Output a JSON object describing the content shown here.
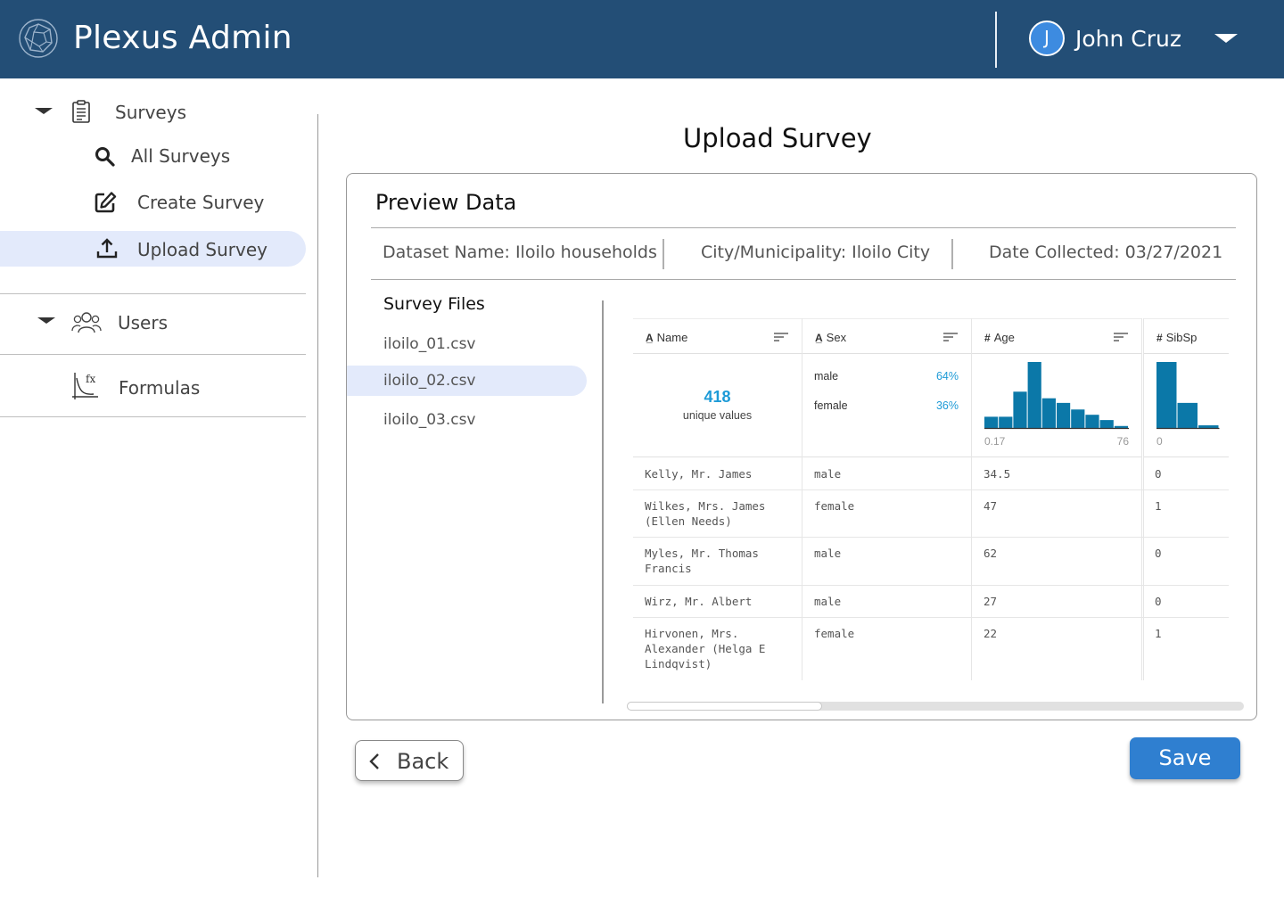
{
  "header": {
    "app_title": "Plexus Admin",
    "user": {
      "initial": "J",
      "name": "John Cruz"
    },
    "colors": {
      "bar": "#234e76",
      "avatar": "#3d8be0"
    }
  },
  "sidebar": {
    "surveys": {
      "label": "Surveys",
      "items": [
        {
          "label": "All Surveys",
          "icon": "search-icon"
        },
        {
          "label": "Create Survey",
          "icon": "edit-icon"
        },
        {
          "label": "Upload Survey",
          "icon": "upload-icon",
          "active": true
        }
      ]
    },
    "users": {
      "label": "Users",
      "icon": "users-icon"
    },
    "formulas": {
      "label": "Formulas",
      "icon": "formula-icon"
    }
  },
  "main": {
    "page_title": "Upload Survey",
    "card_title": "Preview Data",
    "meta": {
      "dataset": "Dataset Name: Iloilo households",
      "city": "City/Municipality: Iloilo City",
      "date": "Date Collected: 03/27/2021"
    },
    "files": {
      "title": "Survey Files",
      "items": [
        "iloilo_01.csv",
        "iloilo_02.csv",
        "iloilo_03.csv"
      ],
      "selected": "iloilo_02.csv"
    },
    "table": {
      "columns": [
        {
          "type_icon": "A̲",
          "label": "Name"
        },
        {
          "type_icon": "A̲",
          "label": "Sex"
        },
        {
          "type_icon": "#",
          "label": "Age"
        },
        {
          "type_icon": "#",
          "label": "SibSp"
        }
      ],
      "name_summary": {
        "count": "418",
        "label": "unique values"
      },
      "sex_summary": [
        {
          "label": "male",
          "pct": "64%"
        },
        {
          "label": "female",
          "pct": "36%"
        }
      ],
      "age_summary": {
        "min": "0.17",
        "max": "76",
        "hist": [
          0.17,
          0.17,
          0.55,
          1.0,
          0.45,
          0.38,
          0.28,
          0.2,
          0.12,
          0.03
        ]
      },
      "sibsp_summary": {
        "min": "0",
        "hist": [
          1.0,
          0.38,
          0.04
        ]
      },
      "rows": [
        {
          "name": "Kelly, Mr. James",
          "sex": "male",
          "age": "34.5",
          "sibsp": "0"
        },
        {
          "name": "Wilkes, Mrs. James\n(Ellen Needs)",
          "sex": "female",
          "age": "47",
          "sibsp": "1"
        },
        {
          "name": "Myles, Mr. Thomas\nFrancis",
          "sex": "male",
          "age": "62",
          "sibsp": "0"
        },
        {
          "name": "Wirz, Mr. Albert",
          "sex": "male",
          "age": "27",
          "sibsp": "0"
        },
        {
          "name": "Hirvonen, Mrs.\nAlexander (Helga E\nLindqvist)",
          "sex": "female",
          "age": "22",
          "sibsp": "1"
        }
      ]
    }
  },
  "actions": {
    "back_label": "Back",
    "save_label": "Save"
  }
}
